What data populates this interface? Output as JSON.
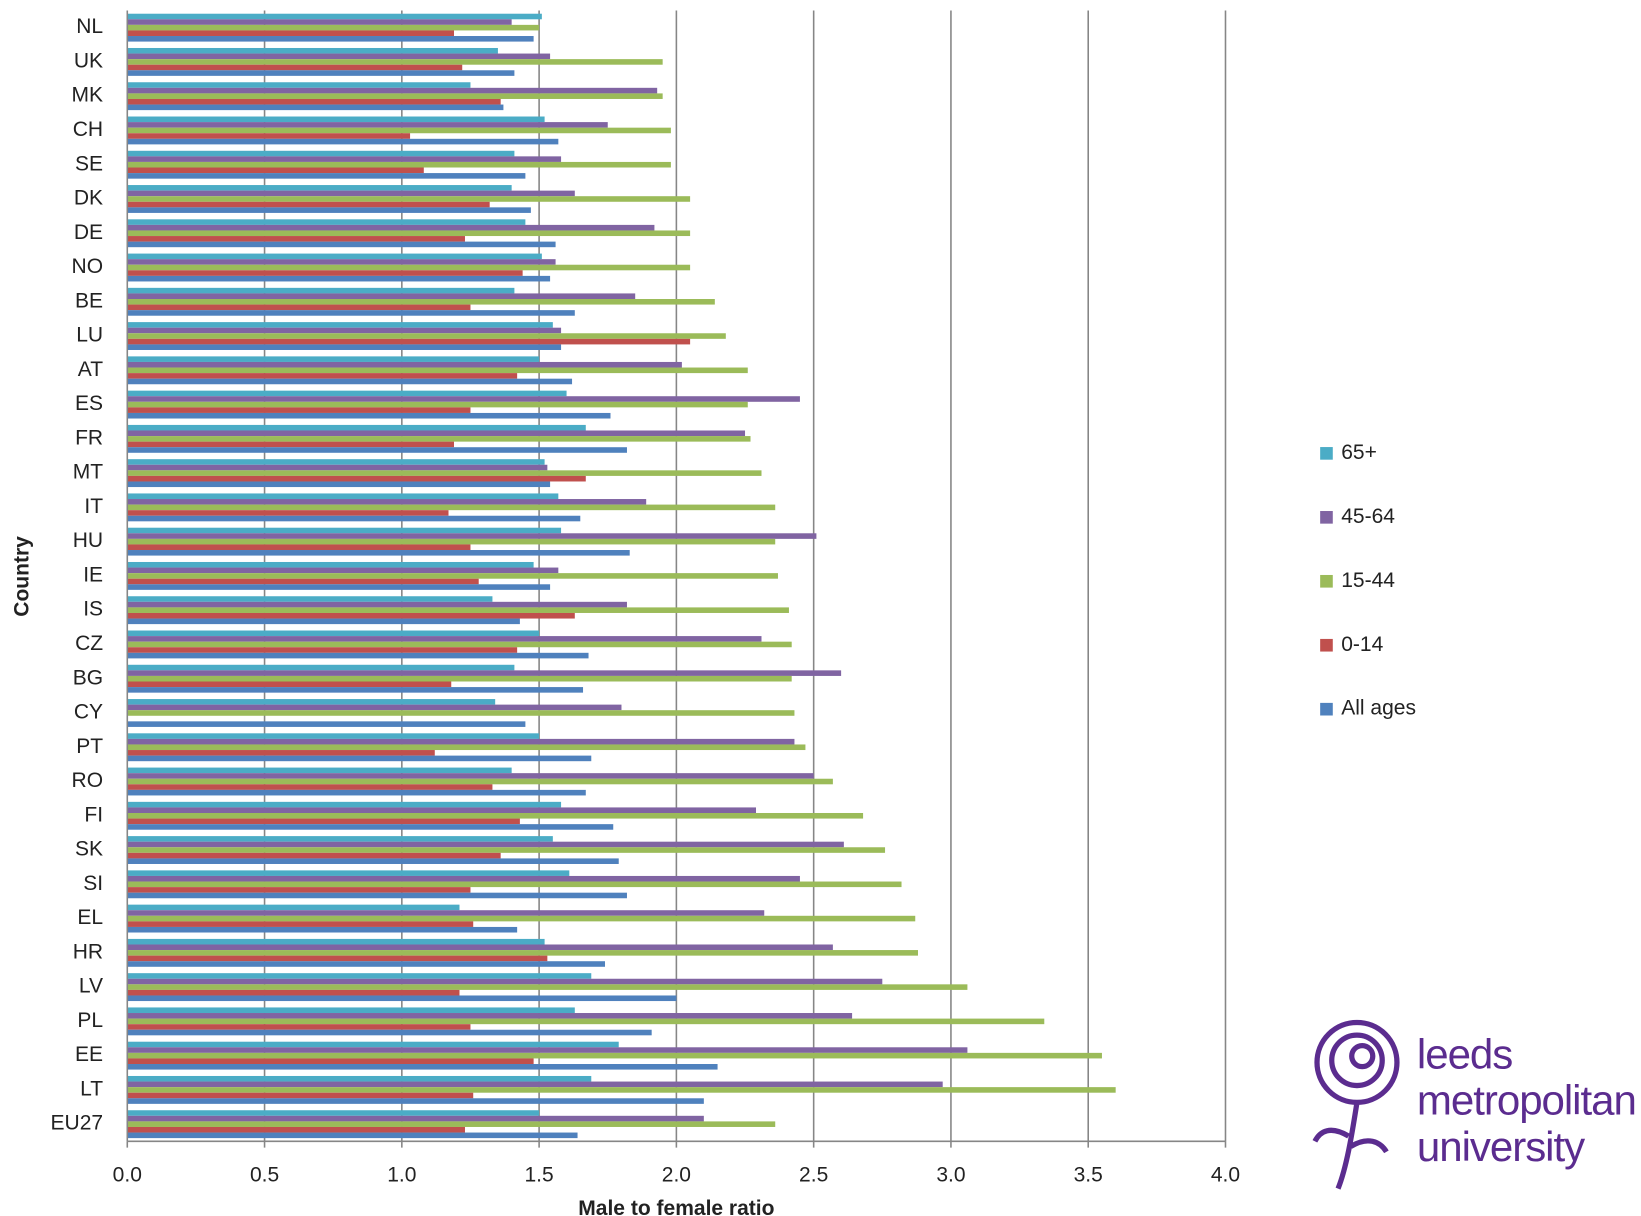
{
  "chart_data": {
    "type": "bar",
    "orientation": "horizontal",
    "x_label": "Male to female ratio",
    "y_label": "Country",
    "categories": [
      "NL",
      "UK",
      "MK",
      "CH",
      "SE",
      "DK",
      "DE",
      "NO",
      "BE",
      "LU",
      "AT",
      "ES",
      "FR",
      "MT",
      "IT",
      "HU",
      "IE",
      "IS",
      "CZ",
      "BG",
      "CY",
      "PT",
      "RO",
      "FI",
      "SK",
      "SI",
      "EL",
      "HR",
      "LV",
      "PL",
      "EE",
      "LT",
      "EU27"
    ],
    "series": [
      {
        "name": "65+",
        "color": "#4bacc6",
        "values": [
          1.51,
          1.35,
          1.25,
          1.52,
          1.41,
          1.4,
          1.45,
          1.51,
          1.41,
          1.55,
          1.5,
          1.6,
          1.67,
          1.52,
          1.57,
          1.58,
          1.48,
          1.33,
          1.5,
          1.41,
          1.34,
          1.5,
          1.4,
          1.58,
          1.55,
          1.61,
          1.21,
          1.52,
          1.69,
          1.63,
          1.79,
          1.69,
          1.5
        ]
      },
      {
        "name": "45-64",
        "color": "#8064a2",
        "values": [
          1.4,
          1.54,
          1.93,
          1.75,
          1.58,
          1.63,
          1.92,
          1.56,
          1.85,
          1.58,
          2.02,
          2.45,
          2.25,
          1.53,
          1.89,
          2.51,
          1.57,
          1.82,
          2.31,
          2.6,
          1.8,
          2.43,
          2.5,
          2.29,
          2.61,
          2.45,
          2.32,
          2.57,
          2.75,
          2.64,
          3.06,
          2.97,
          2.1
        ]
      },
      {
        "name": "15-44",
        "color": "#9bbb59",
        "values": [
          1.5,
          1.95,
          1.95,
          1.98,
          1.98,
          2.05,
          2.05,
          2.05,
          2.14,
          2.18,
          2.26,
          2.26,
          2.27,
          2.31,
          2.36,
          2.36,
          2.37,
          2.41,
          2.42,
          2.42,
          2.43,
          2.47,
          2.57,
          2.68,
          2.76,
          2.82,
          2.87,
          2.88,
          3.06,
          3.34,
          3.55,
          3.6,
          2.36
        ]
      },
      {
        "name": "0-14",
        "color": "#c0504d",
        "values": [
          1.19,
          1.22,
          1.36,
          1.03,
          1.08,
          1.32,
          1.23,
          1.44,
          1.25,
          2.05,
          1.42,
          1.25,
          1.19,
          1.67,
          1.17,
          1.25,
          1.28,
          1.63,
          1.42,
          1.18,
          null,
          1.12,
          1.33,
          1.43,
          1.36,
          1.25,
          1.26,
          1.53,
          1.21,
          1.25,
          1.48,
          1.26,
          1.23
        ]
      },
      {
        "name": "All ages",
        "color": "#4f81bd",
        "values": [
          1.48,
          1.41,
          1.37,
          1.57,
          1.45,
          1.47,
          1.56,
          1.54,
          1.63,
          1.58,
          1.62,
          1.76,
          1.82,
          1.54,
          1.65,
          1.83,
          1.54,
          1.43,
          1.68,
          1.66,
          1.45,
          1.69,
          1.67,
          1.77,
          1.79,
          1.82,
          1.42,
          1.74,
          2.0,
          1.91,
          2.15,
          2.1,
          1.64
        ]
      }
    ],
    "xlim": [
      0,
      4
    ],
    "xticks": [
      {
        "value": 0,
        "label": "0.0"
      },
      0.5,
      {
        "value": 1,
        "label": "1.0"
      },
      1.5,
      {
        "value": 2,
        "label": "2.0"
      },
      2.5,
      {
        "value": 3,
        "label": "3.0"
      },
      3.5,
      {
        "value": 4,
        "label": "4.0"
      }
    ],
    "grid": true,
    "legend": "right"
  },
  "logo": [
    "leeds",
    "metropolitan",
    "university"
  ]
}
